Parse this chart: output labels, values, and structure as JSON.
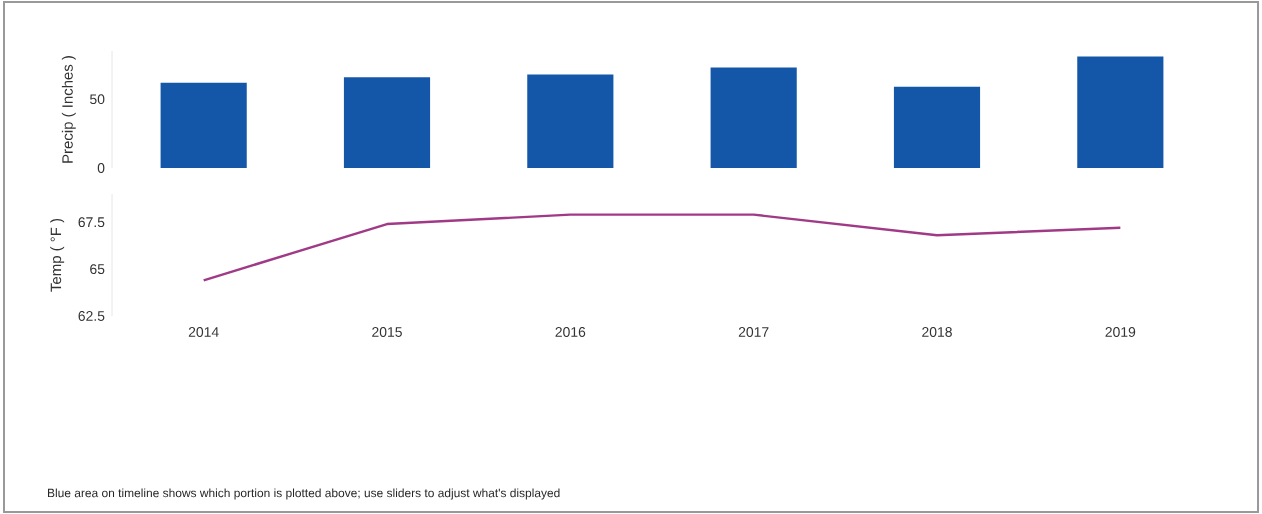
{
  "chart_data": [
    {
      "type": "bar",
      "ylabel": "Precip ( Inches )",
      "categories": [
        "2014",
        "2015",
        "2016",
        "2017",
        "2018",
        "2019"
      ],
      "values": [
        62,
        66,
        68,
        73,
        59,
        81
      ],
      "color": "#1457a8",
      "ylim": [
        0,
        85
      ],
      "yticks": [
        0,
        50
      ],
      "tick_labels": "y"
    },
    {
      "type": "line",
      "ylabel": "Temp ( °F )",
      "categories": [
        "2014",
        "2015",
        "2016",
        "2017",
        "2018",
        "2019"
      ],
      "values": [
        64.4,
        67.4,
        67.9,
        67.9,
        66.8,
        67.2
      ],
      "color": "#a03a87",
      "ylim": [
        62.5,
        69
      ],
      "yticks": [
        62.5,
        65,
        67.5
      ],
      "annotations": [
        "Blue area on timeline shows which portion is plotted above; use sliders to adjust what's displayed"
      ]
    }
  ]
}
